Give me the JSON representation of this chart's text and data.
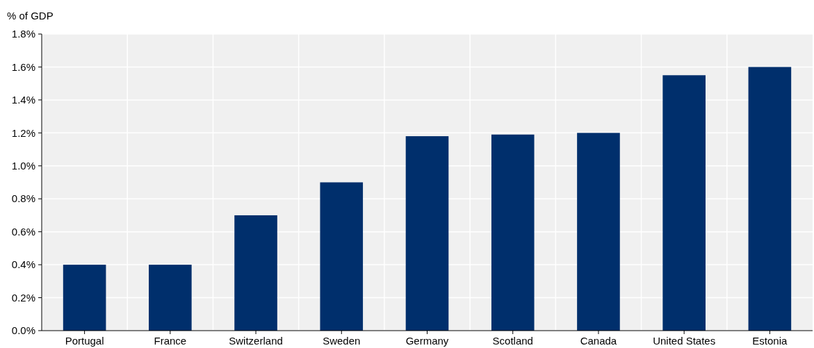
{
  "chart_data": {
    "type": "bar",
    "ylabel": "% of GDP",
    "categories": [
      "Portugal",
      "France",
      "Switzerland",
      "Sweden",
      "Germany",
      "Scotland",
      "Canada",
      "United States",
      "Estonia"
    ],
    "values": [
      0.4,
      0.4,
      0.7,
      0.9,
      1.18,
      1.19,
      1.2,
      1.55,
      1.6
    ],
    "color": "#002f6c",
    "ylim": [
      0,
      1.8
    ],
    "yticks": [
      {
        "value": 0,
        "label": "0.0%"
      },
      {
        "value": 0.2,
        "label": "0.2%"
      },
      {
        "value": 0.4,
        "label": "0.4%"
      },
      {
        "value": 0.6,
        "label": "0.6%"
      },
      {
        "value": 0.8,
        "label": "0.8%"
      },
      {
        "value": 1.0,
        "label": "1.0%"
      },
      {
        "value": 1.2,
        "label": "1.2%"
      },
      {
        "value": 1.4,
        "label": "1.4%"
      },
      {
        "value": 1.6,
        "label": "1.6%"
      },
      {
        "value": 1.8,
        "label": "1.8%"
      }
    ],
    "grid": true
  }
}
